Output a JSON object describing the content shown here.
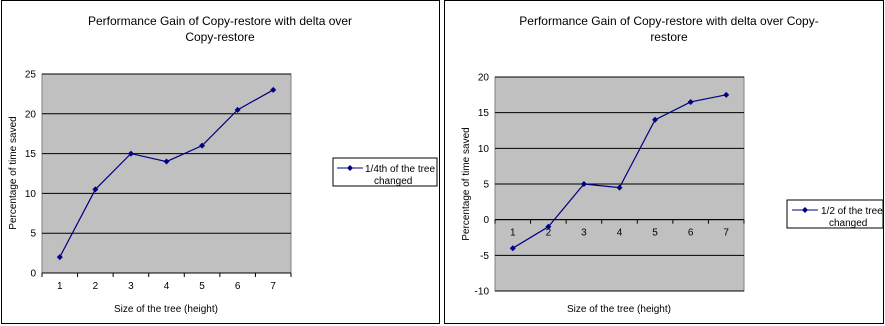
{
  "chart_data": [
    {
      "type": "line",
      "title_lines": [
        "Performance Gain of Copy-restore with delta over",
        "Copy-restore"
      ],
      "xlabel": "Size of the tree (height)",
      "ylabel": "Percentage of time saved",
      "categories": [
        "1",
        "2",
        "3",
        "4",
        "5",
        "6",
        "7"
      ],
      "ylim": [
        0,
        25
      ],
      "yticks": [
        "0",
        "5",
        "10",
        "15",
        "20",
        "25"
      ],
      "series": [
        {
          "name_lines": [
            "1/4th of the tree",
            "changed"
          ],
          "values": [
            2,
            10.5,
            15,
            14,
            16,
            20.5,
            23
          ]
        }
      ],
      "plot_background": "#c0c0c0",
      "line_color": "#000080",
      "grid": true,
      "legend_position": "right"
    },
    {
      "type": "line",
      "title_lines": [
        "Performance Gain of Copy-restore with delta over Copy-",
        "restore"
      ],
      "xlabel": "Size of the tree (height)",
      "ylabel": "Percentage of time saved",
      "categories": [
        "1",
        "2",
        "3",
        "4",
        "5",
        "6",
        "7"
      ],
      "ylim": [
        -10,
        20
      ],
      "yticks": [
        "-10",
        "-5",
        "0",
        "5",
        "10",
        "15",
        "20"
      ],
      "series": [
        {
          "name_lines": [
            "1/2 of the tree",
            "changed"
          ],
          "values": [
            -4,
            -1,
            5,
            4.5,
            14,
            16.5,
            17.5
          ]
        }
      ],
      "plot_background": "#c0c0c0",
      "line_color": "#000080",
      "grid": true,
      "legend_position": "right"
    }
  ]
}
